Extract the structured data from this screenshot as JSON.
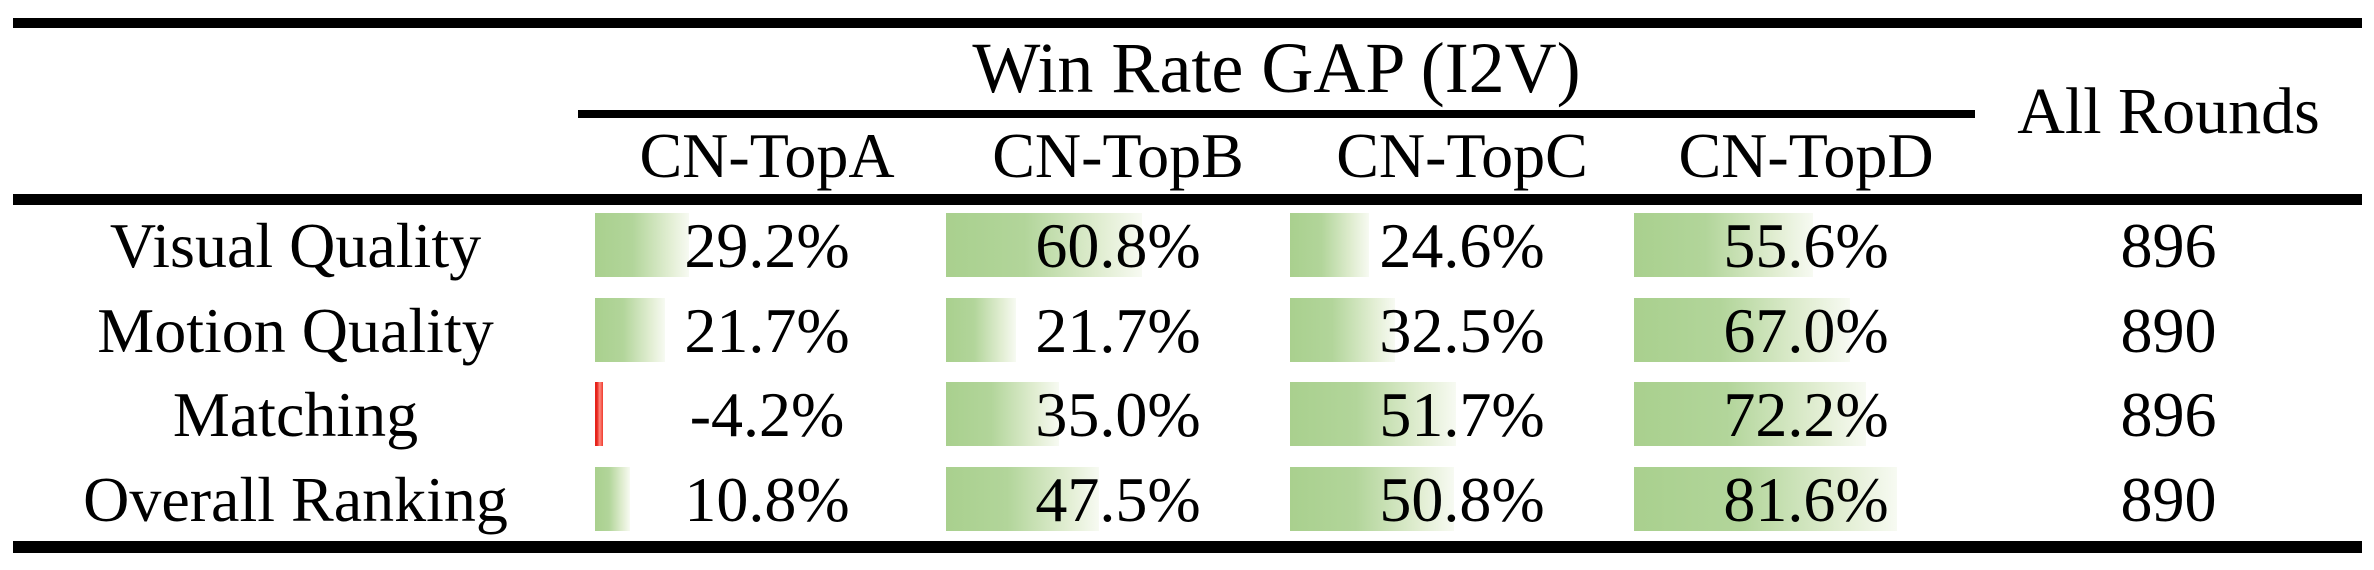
{
  "colors": {
    "background": "#ffffff",
    "rule": "#000000",
    "text": "#000000",
    "positive_bar_start": "#a9d08e",
    "positive_bar_end": "#f7faf2",
    "negative_bar": "#ef3b2d"
  },
  "header": {
    "group_title": "Win Rate GAP (I2V)",
    "all_rounds_label": "All Rounds",
    "columns": [
      "CN-TopA",
      "CN-TopB",
      "CN-TopC",
      "CN-TopD"
    ]
  },
  "rows": [
    {
      "label": "Visual Quality",
      "cells": [
        {
          "value": 29.2,
          "text": "29.2%"
        },
        {
          "value": 60.8,
          "text": "60.8%"
        },
        {
          "value": 24.6,
          "text": "24.6%"
        },
        {
          "value": 55.6,
          "text": "55.6%"
        }
      ],
      "all_rounds": "896"
    },
    {
      "label": "Motion Quality",
      "cells": [
        {
          "value": 21.7,
          "text": "21.7%"
        },
        {
          "value": 21.7,
          "text": "21.7%"
        },
        {
          "value": 32.5,
          "text": "32.5%"
        },
        {
          "value": 67.0,
          "text": "67.0%"
        }
      ],
      "all_rounds": "890"
    },
    {
      "label": "Matching",
      "cells": [
        {
          "value": -4.2,
          "text": "-4.2%"
        },
        {
          "value": 35.0,
          "text": "35.0%"
        },
        {
          "value": 51.7,
          "text": "51.7%"
        },
        {
          "value": 72.2,
          "text": "72.2%"
        }
      ],
      "all_rounds": "896"
    },
    {
      "label": "Overall Ranking",
      "cells": [
        {
          "value": 10.8,
          "text": "10.8%"
        },
        {
          "value": 47.5,
          "text": "47.5%"
        },
        {
          "value": 50.8,
          "text": "50.8%"
        },
        {
          "value": 81.6,
          "text": "81.6%"
        }
      ],
      "all_rounds": "890"
    }
  ],
  "chart_data": {
    "type": "table",
    "title": "Win Rate GAP (I2V)",
    "columns": [
      "CN-TopA",
      "CN-TopB",
      "CN-TopC",
      "CN-TopD",
      "All Rounds"
    ],
    "row_labels": [
      "Visual Quality",
      "Motion Quality",
      "Matching",
      "Overall Ranking"
    ],
    "series": [
      {
        "name": "Visual Quality",
        "values": [
          29.2,
          60.8,
          24.6,
          55.6
        ],
        "all_rounds": 896
      },
      {
        "name": "Motion Quality",
        "values": [
          21.7,
          21.7,
          32.5,
          67.0
        ],
        "all_rounds": 890
      },
      {
        "name": "Matching",
        "values": [
          -4.2,
          35.0,
          51.7,
          72.2
        ],
        "all_rounds": 896
      },
      {
        "name": "Overall Ranking",
        "values": [
          10.8,
          47.5,
          50.8,
          81.6
        ],
        "all_rounds": 890
      }
    ],
    "layout_hints": {
      "databars": true,
      "positive_bar_color": "green gradient fading right",
      "negative_bar_color": "red",
      "bar_scale": "bar width proportional to percent value"
    }
  }
}
